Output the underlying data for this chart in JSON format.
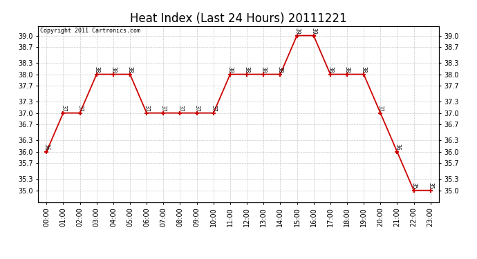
{
  "title": "Heat Index (Last 24 Hours) 20111221",
  "copyright_text": "Copyright 2011 Cartronics.com",
  "hours": [
    "00:00",
    "01:00",
    "02:00",
    "03:00",
    "04:00",
    "05:00",
    "06:00",
    "07:00",
    "08:00",
    "09:00",
    "10:00",
    "11:00",
    "12:00",
    "13:00",
    "14:00",
    "15:00",
    "16:00",
    "17:00",
    "18:00",
    "19:00",
    "20:00",
    "21:00",
    "22:00",
    "23:00"
  ],
  "values": [
    36.0,
    37.0,
    37.0,
    38.0,
    38.0,
    38.0,
    37.0,
    37.0,
    37.0,
    37.0,
    37.0,
    38.0,
    38.0,
    38.0,
    38.0,
    39.0,
    39.0,
    38.0,
    38.0,
    38.0,
    37.0,
    36.0,
    35.0,
    35.0
  ],
  "labels": [
    "36",
    "37",
    "37",
    "38",
    "38",
    "38",
    "37",
    "37",
    "37",
    "37",
    "37",
    "38",
    "38",
    "38",
    "38",
    "39",
    "39",
    "38",
    "38",
    "38",
    "37",
    "36",
    "35",
    "35"
  ],
  "line_color": "#cc0000",
  "marker_color": "#cc0000",
  "bg_color": "#ffffff",
  "grid_color": "#c8c8c8",
  "ylim_min": 34.7,
  "ylim_max": 39.25,
  "yticks": [
    35.0,
    35.3,
    35.7,
    36.0,
    36.3,
    36.7,
    37.0,
    37.3,
    37.7,
    38.0,
    38.3,
    38.7,
    39.0
  ],
  "title_fontsize": 12,
  "label_fontsize": 5.5,
  "tick_fontsize": 7,
  "copyright_fontsize": 6
}
